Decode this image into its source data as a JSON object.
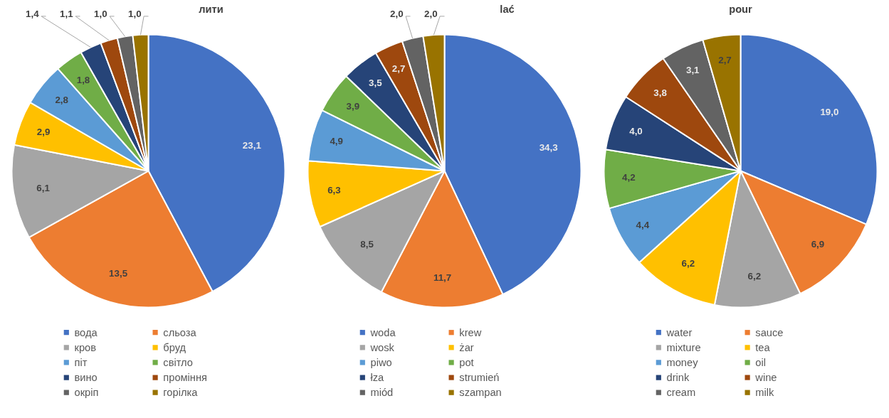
{
  "chart_data": [
    {
      "type": "pie",
      "title": "лити",
      "legend": "bottom",
      "categories": [
        "вода",
        "сльоза",
        "кров",
        "бруд",
        "піт",
        "світло",
        "вино",
        "проміння",
        "окріп",
        "горілка"
      ],
      "values": [
        23.1,
        13.5,
        6.1,
        2.9,
        2.8,
        1.8,
        1.4,
        1.1,
        1.0,
        1.0
      ],
      "value_labels": [
        "23,1",
        "13,5",
        "6,1",
        "2,9",
        "2,8",
        "1,8",
        "1,4",
        "1,1",
        "1,0",
        "1,0"
      ],
      "colors": [
        "#4472c4",
        "#ed7d31",
        "#a5a5a5",
        "#ffc000",
        "#5b9bd5",
        "#70ad47",
        "#264478",
        "#9e480e",
        "#636363",
        "#997300"
      ]
    },
    {
      "type": "pie",
      "title": "lać",
      "legend": "bottom",
      "categories": [
        "woda",
        "krew",
        "wosk",
        "żar",
        "piwo",
        "pot",
        "łza",
        "strumień",
        "miód",
        "szampan"
      ],
      "values": [
        34.3,
        11.7,
        8.5,
        6.3,
        4.9,
        3.9,
        3.5,
        2.7,
        2.0,
        2.0
      ],
      "value_labels": [
        "34,3",
        "11,7",
        "8,5",
        "6,3",
        "4,9",
        "3,9",
        "3,5",
        "2,7",
        "2,0",
        "2,0"
      ],
      "colors": [
        "#4472c4",
        "#ed7d31",
        "#a5a5a5",
        "#ffc000",
        "#5b9bd5",
        "#70ad47",
        "#264478",
        "#9e480e",
        "#636363",
        "#997300"
      ]
    },
    {
      "type": "pie",
      "title": "pour",
      "legend": "bottom",
      "categories": [
        "water",
        "sauce",
        "mixture",
        "tea",
        "money",
        "oil",
        "drink",
        "wine",
        "cream",
        "milk"
      ],
      "values": [
        19.0,
        6.9,
        6.2,
        6.2,
        4.4,
        4.2,
        4.0,
        3.8,
        3.1,
        2.7
      ],
      "value_labels": [
        "19,0",
        "6,9",
        "6,2",
        "6,2",
        "4,4",
        "4,2",
        "4,0",
        "3,8",
        "3,1",
        "2,7"
      ],
      "colors": [
        "#4472c4",
        "#ed7d31",
        "#a5a5a5",
        "#ffc000",
        "#5b9bd5",
        "#70ad47",
        "#264478",
        "#9e480e",
        "#636363",
        "#997300"
      ]
    }
  ]
}
